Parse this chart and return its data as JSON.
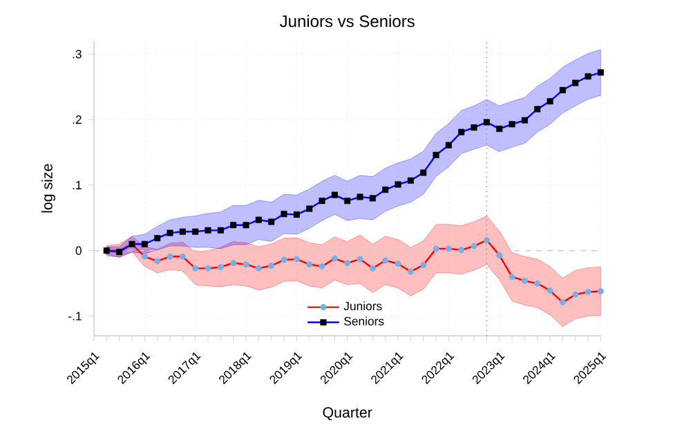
{
  "chart_data": {
    "type": "line",
    "title": "Juniors vs Seniors",
    "xlabel": "Quarter",
    "ylabel": "log size",
    "categories": [
      "2015q1",
      null,
      null,
      null,
      "2016q1",
      null,
      null,
      null,
      "2017q1",
      null,
      null,
      null,
      "2018q1",
      null,
      null,
      null,
      "2019q1",
      null,
      null,
      null,
      "2020q1",
      null,
      null,
      null,
      "2021q1",
      null,
      null,
      null,
      "2022q1",
      null,
      null,
      null,
      "2023q1",
      null,
      null,
      null,
      "2024q1",
      null,
      null,
      null,
      "2025q1"
    ],
    "series": [
      {
        "name": "Juniors",
        "color": "#ff0000",
        "marker": "circle",
        "values": [
          null,
          0,
          0,
          0.01,
          -0.009,
          -0.016,
          -0.009,
          -0.009,
          -0.027,
          -0.027,
          -0.025,
          -0.019,
          -0.021,
          -0.027,
          -0.023,
          -0.014,
          -0.013,
          -0.021,
          -0.024,
          -0.012,
          -0.019,
          -0.013,
          -0.027,
          -0.015,
          -0.02,
          -0.032,
          -0.022,
          0.003,
          0.003,
          0.001,
          0.007,
          0.016,
          -0.007,
          -0.04,
          -0.046,
          -0.05,
          -0.061,
          -0.079,
          -0.067,
          -0.063,
          -0.062
        ],
        "lower": [
          null,
          -0.008,
          -0.01,
          -0.002,
          -0.024,
          -0.034,
          -0.029,
          -0.031,
          -0.052,
          -0.054,
          -0.055,
          -0.052,
          -0.054,
          -0.06,
          -0.056,
          -0.047,
          -0.046,
          -0.054,
          -0.057,
          -0.045,
          -0.052,
          -0.05,
          -0.064,
          -0.052,
          -0.057,
          -0.069,
          -0.059,
          -0.034,
          -0.034,
          -0.036,
          -0.03,
          -0.021,
          -0.044,
          -0.077,
          -0.083,
          -0.087,
          -0.098,
          -0.116,
          -0.104,
          -0.1,
          -0.099
        ],
        "upper": [
          null,
          0.008,
          0.01,
          0.022,
          0.006,
          0.002,
          0.011,
          0.013,
          -0.002,
          0.0,
          0.005,
          0.014,
          0.012,
          0.006,
          0.01,
          0.019,
          0.02,
          0.012,
          0.009,
          0.021,
          0.014,
          0.024,
          0.01,
          0.022,
          0.017,
          0.005,
          0.015,
          0.04,
          0.04,
          0.038,
          0.044,
          0.053,
          0.03,
          -0.003,
          -0.009,
          -0.013,
          -0.024,
          -0.042,
          -0.03,
          -0.026,
          -0.025
        ]
      },
      {
        "name": "Seniors",
        "color": "#0000ff",
        "marker": "square",
        "values": [
          null,
          0,
          -0.002,
          0.01,
          0.01,
          0.019,
          0.027,
          0.029,
          0.029,
          0.031,
          0.031,
          0.039,
          0.039,
          0.047,
          0.044,
          0.056,
          0.055,
          0.064,
          0.076,
          0.085,
          0.076,
          0.082,
          0.08,
          0.093,
          0.101,
          0.107,
          0.119,
          0.146,
          0.161,
          0.181,
          0.188,
          0.196,
          0.186,
          0.193,
          0.199,
          0.216,
          0.228,
          0.245,
          0.256,
          0.266,
          0.272
        ],
        "lower": [
          null,
          -0.006,
          -0.01,
          -0.002,
          -0.005,
          0.001,
          0.007,
          0.007,
          0.005,
          0.005,
          0.003,
          0.009,
          0.009,
          0.017,
          0.014,
          0.026,
          0.025,
          0.034,
          0.046,
          0.055,
          0.046,
          0.049,
          0.047,
          0.06,
          0.068,
          0.074,
          0.086,
          0.113,
          0.128,
          0.148,
          0.155,
          0.161,
          0.151,
          0.158,
          0.164,
          0.181,
          0.193,
          0.21,
          0.221,
          0.231,
          0.237
        ],
        "upper": [
          null,
          0.006,
          0.006,
          0.022,
          0.025,
          0.037,
          0.047,
          0.051,
          0.053,
          0.057,
          0.059,
          0.069,
          0.069,
          0.077,
          0.074,
          0.086,
          0.085,
          0.094,
          0.106,
          0.115,
          0.106,
          0.115,
          0.113,
          0.126,
          0.134,
          0.14,
          0.152,
          0.179,
          0.194,
          0.214,
          0.221,
          0.231,
          0.221,
          0.228,
          0.234,
          0.251,
          0.263,
          0.28,
          0.291,
          0.301,
          0.307
        ]
      }
    ],
    "ylim": [
      -0.13,
      0.32
    ],
    "yticks": [
      {
        "value": -0.1,
        "label": "-.1"
      },
      {
        "value": 0,
        "label": "0"
      },
      {
        "value": 0.1,
        "label": ".1"
      },
      {
        "value": 0.2,
        "label": ".2"
      },
      {
        "value": 0.3,
        "label": ".3"
      }
    ],
    "ref_lines": [
      {
        "axis": "y",
        "value": 0,
        "color": "#cccccc",
        "line_style": "dashed"
      }
    ],
    "grid": true,
    "legend": "bottom",
    "line_style": "solid"
  }
}
